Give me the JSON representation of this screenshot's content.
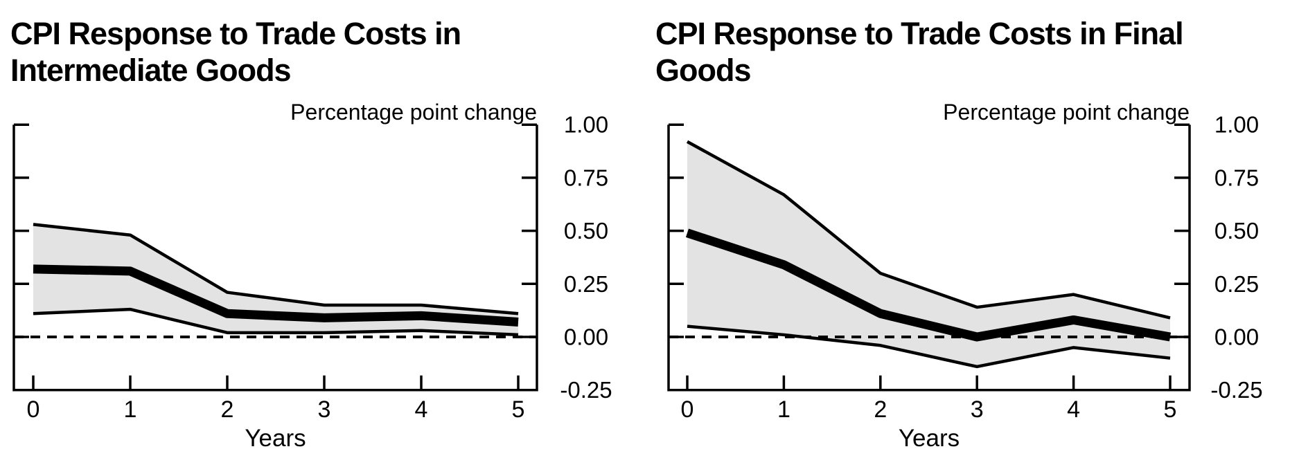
{
  "charts": {
    "count": 2
  },
  "chart_data": [
    {
      "type": "line",
      "title": "CPI Response to Trade Costs in Intermediate Goods",
      "top_axis_label": "Percentage point change",
      "xlabel": "Years",
      "x": [
        0,
        1,
        2,
        3,
        4,
        5
      ],
      "xtick_labels": [
        "0",
        "1",
        "2",
        "3",
        "4",
        "5"
      ],
      "series": [
        {
          "name": "point-estimate",
          "values": [
            0.32,
            0.31,
            0.11,
            0.09,
            0.1,
            0.07
          ]
        },
        {
          "name": "confidence-band-upper",
          "values": [
            0.53,
            0.48,
            0.21,
            0.15,
            0.15,
            0.11
          ]
        },
        {
          "name": "confidence-band-lower",
          "values": [
            0.11,
            0.13,
            0.02,
            0.02,
            0.03,
            0.01
          ]
        }
      ],
      "yticks": [
        1.0,
        0.75,
        0.5,
        0.25,
        0.0,
        -0.25
      ],
      "ytick_labels": [
        "1.00",
        "0.75",
        "0.50",
        "0.25",
        "0.00",
        "-0.25"
      ],
      "ylim": [
        -0.25,
        1.0
      ],
      "zero_line_dashed": true,
      "grid": false,
      "legend": "none",
      "band_fill": "#e3e3e3",
      "line_color": "#000000"
    },
    {
      "type": "line",
      "title": "CPI Response to Trade Costs in Final Goods",
      "top_axis_label": "Percentage point change",
      "xlabel": "Years",
      "x": [
        0,
        1,
        2,
        3,
        4,
        5
      ],
      "xtick_labels": [
        "0",
        "1",
        "2",
        "3",
        "4",
        "5"
      ],
      "series": [
        {
          "name": "point-estimate",
          "values": [
            0.49,
            0.34,
            0.11,
            0.0,
            0.08,
            0.0
          ]
        },
        {
          "name": "confidence-band-upper",
          "values": [
            0.92,
            0.67,
            0.3,
            0.14,
            0.2,
            0.09
          ]
        },
        {
          "name": "confidence-band-lower",
          "values": [
            0.05,
            0.01,
            -0.04,
            -0.14,
            -0.05,
            -0.1
          ]
        }
      ],
      "yticks": [
        1.0,
        0.75,
        0.5,
        0.25,
        0.0,
        -0.25
      ],
      "ytick_labels": [
        "1.00",
        "0.75",
        "0.50",
        "0.25",
        "0.00",
        "-0.25"
      ],
      "ylim": [
        -0.25,
        1.0
      ],
      "zero_line_dashed": true,
      "grid": false,
      "legend": "none",
      "band_fill": "#e3e3e3",
      "line_color": "#000000"
    }
  ]
}
